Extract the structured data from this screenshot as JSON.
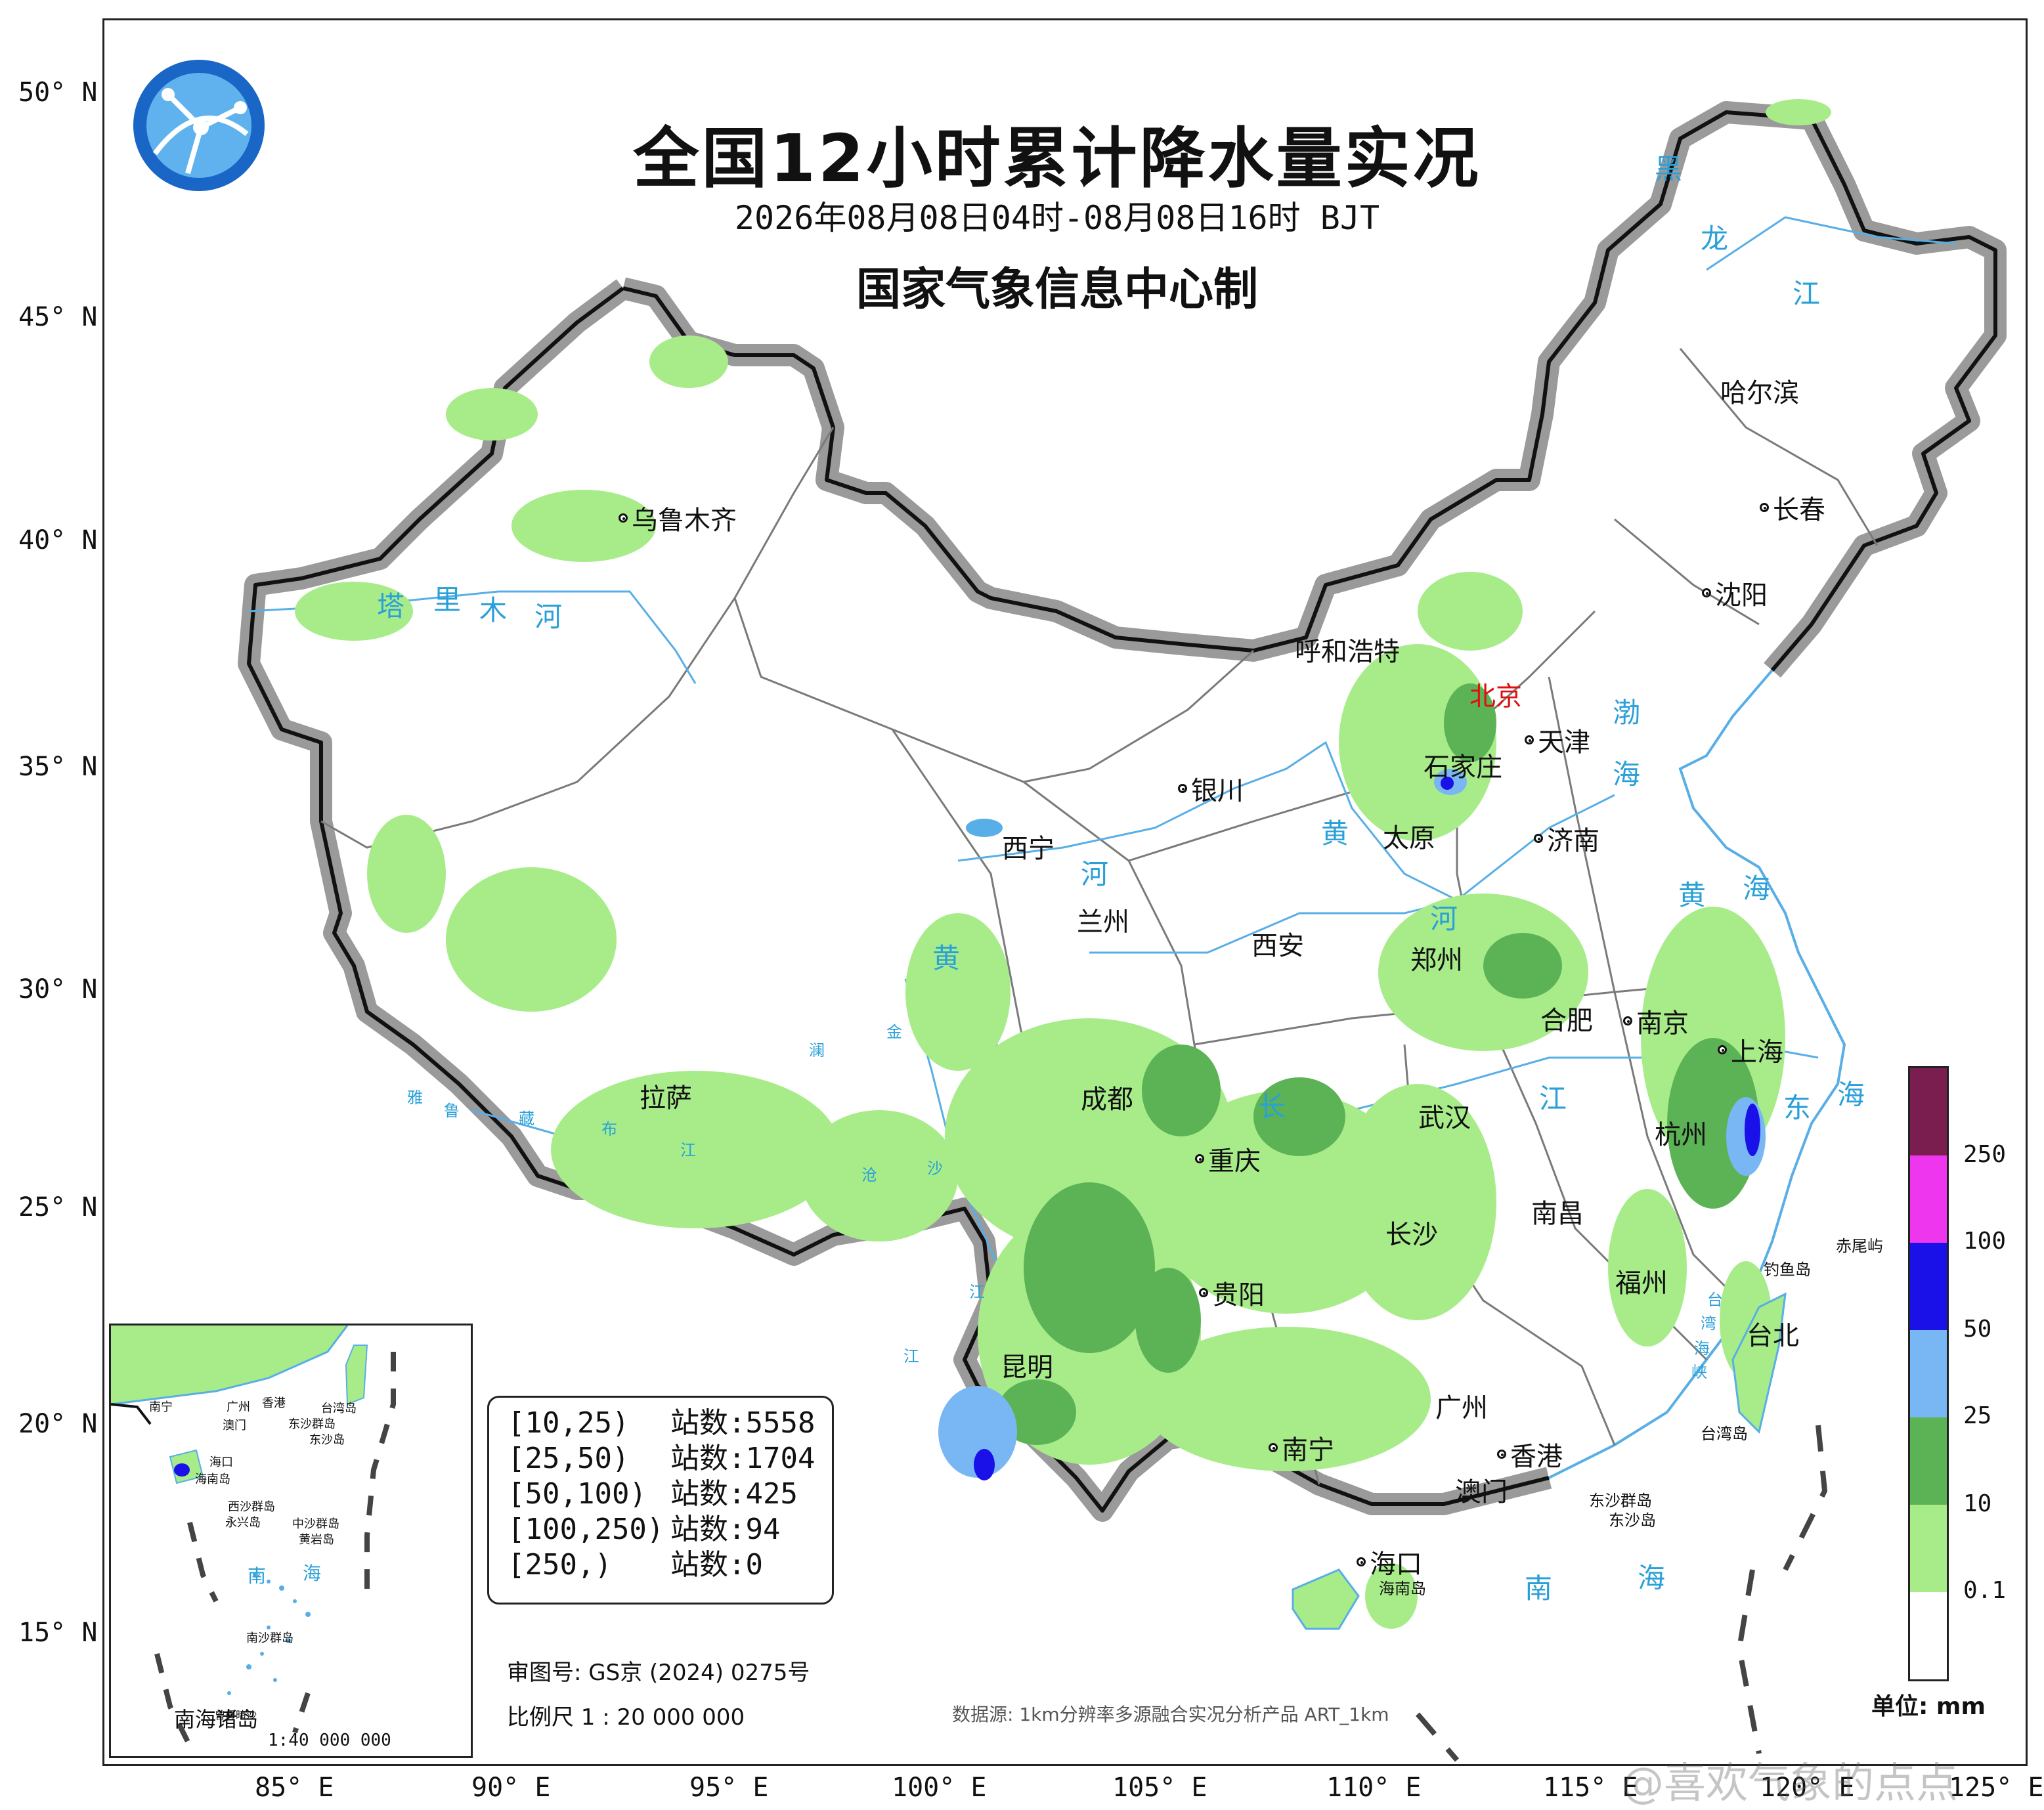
{
  "title": "全国12小时累计降水量实况",
  "time_range": "2026年08月08日04时-08月08日16时 BJT",
  "issuer": "国家气象信息中心制",
  "latitude_labels": [
    "50° N",
    "45° N",
    "40° N",
    "35° N",
    "30° N",
    "25° N",
    "20° N",
    "15° N"
  ],
  "longitude_labels": [
    "85° E",
    "90° E",
    "95° E",
    "100° E",
    "105° E",
    "110° E",
    "115° E",
    "120° E",
    "125° E"
  ],
  "cities": [
    "乌鲁木齐",
    "哈尔滨",
    "长春",
    "沈阳",
    "呼和浩特",
    "北京",
    "天津",
    "石家庄",
    "银川",
    "太原",
    "济南",
    "西宁",
    "兰州",
    "西安",
    "郑州",
    "合肥",
    "南京",
    "上海",
    "拉萨",
    "成都",
    "武汉",
    "杭州",
    "重庆",
    "长沙",
    "南昌",
    "福州",
    "台北",
    "贵阳",
    "昆明",
    "南宁",
    "广州",
    "香港",
    "澳门",
    "海口"
  ],
  "water_labels": {
    "heilongjiang": [
      "黑",
      "龙",
      "江"
    ],
    "tarim": [
      "塔",
      "里",
      "木",
      "河"
    ],
    "bohai": [
      "渤",
      "海"
    ],
    "yellow_sea": [
      "黄",
      "海"
    ],
    "yellow_river": [
      "黄",
      "河"
    ],
    "yellow_river_lower": [
      "黄",
      "河"
    ],
    "east_sea": [
      "东",
      "海"
    ],
    "yarlung": [
      "雅",
      "鲁",
      "藏",
      "布",
      "江"
    ],
    "yangtze": [
      "长",
      "江"
    ],
    "lancang": [
      "澜",
      "沧",
      "江"
    ],
    "jinsha": [
      "金",
      "沙",
      "江"
    ],
    "south_sea": [
      "南",
      "海"
    ],
    "taiwan_strait": [
      "台",
      "湾",
      "海",
      "峡"
    ],
    "islands": [
      "钓鱼岛",
      "赤尾屿",
      "台湾岛",
      "东沙群岛",
      "东沙岛",
      "海南岛"
    ]
  },
  "stats": {
    "rows": [
      {
        "range": "[10,25)",
        "count": "站数:5558"
      },
      {
        "range": "[25,50)",
        "count": "站数:1704"
      },
      {
        "range": "[50,100)",
        "count": "站数:425"
      },
      {
        "range": "[100,250)",
        "count": "站数:94"
      },
      {
        "range": "[250,)",
        "count": "站数:0"
      }
    ]
  },
  "legend": {
    "labels": [
      "250",
      "100",
      "50",
      "25",
      "10",
      "0.1"
    ],
    "colors": [
      "#7a1d4f",
      "#ee36ee",
      "#1a10e8",
      "#78b6f4",
      "#5cb356",
      "#a8ec8a",
      "#ffffff"
    ],
    "unit": "单位: mm"
  },
  "footer": {
    "approval": "审图号: GS京 (2024) 0275号",
    "scale": "比例尺 1 : 20 000 000",
    "source": "数据源: 1km分辨率多源融合实况分析产品 ART_1km"
  },
  "inset": {
    "title": "南海诸岛",
    "scale": "1:40 000 000",
    "labels": [
      "南宁",
      "广州",
      "香港",
      "澳门",
      "台湾岛",
      "东沙群岛",
      "东沙岛",
      "海口",
      "海南岛",
      "西沙群岛",
      "永兴岛",
      "中沙群岛",
      "黄岩岛",
      "南",
      "海",
      "南沙群岛",
      "曾母暗沙"
    ]
  },
  "watermark": "@喜欢气象的点点"
}
